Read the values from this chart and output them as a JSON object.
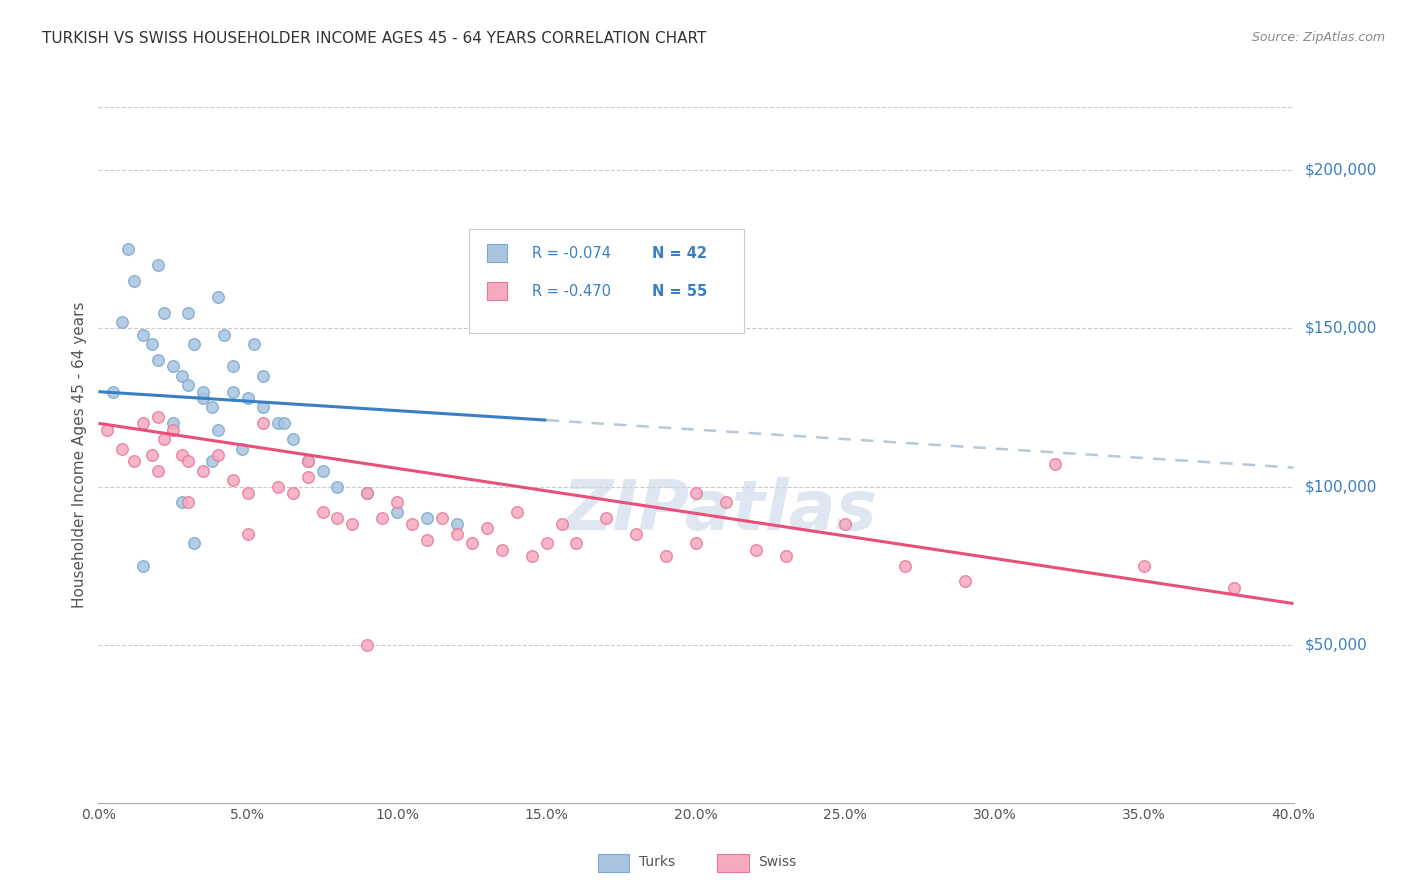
{
  "title": "TURKISH VS SWISS HOUSEHOLDER INCOME AGES 45 - 64 YEARS CORRELATION CHART",
  "source": "Source: ZipAtlas.com",
  "ylabel": "Householder Income Ages 45 - 64 years",
  "xlabel_ticks": [
    "0.0%",
    "5.0%",
    "10.0%",
    "15.0%",
    "20.0%",
    "25.0%",
    "30.0%",
    "35.0%",
    "40.0%"
  ],
  "xlabel_vals": [
    0.0,
    5.0,
    10.0,
    15.0,
    20.0,
    25.0,
    30.0,
    35.0,
    40.0
  ],
  "ylabel_ticks": [
    50000,
    100000,
    150000,
    200000
  ],
  "ylabel_labels": [
    "$50,000",
    "$100,000",
    "$150,000",
    "$200,000"
  ],
  "xlim": [
    0.0,
    40.0
  ],
  "ylim": [
    0,
    220000
  ],
  "turks_color": "#aac4e0",
  "swiss_color": "#f5aabe",
  "turks_edge": "#7aaad0",
  "swiss_edge": "#e8789a",
  "blue_line_color": "#3a7fc1",
  "pink_line_color": "#e8507a",
  "dash_line_color": "#b8c8d8",
  "watermark": "ZIPatlas",
  "watermark_color": "#c8d8e8",
  "turks_R": -0.074,
  "turks_N": 42,
  "swiss_R": -0.47,
  "swiss_N": 55,
  "dot_size": 70,
  "blue_line_x0": 0.0,
  "blue_line_y0": 130000,
  "blue_line_x1": 15.0,
  "blue_line_y1": 121000,
  "dash_line_x0": 15.0,
  "dash_line_y0": 121000,
  "dash_line_x1": 40.0,
  "dash_line_y1": 106000,
  "pink_line_x0": 0.0,
  "pink_line_y0": 120000,
  "pink_line_x1": 40.0,
  "pink_line_y1": 63000,
  "turks_x": [
    0.5,
    0.8,
    1.5,
    1.8,
    2.0,
    2.2,
    2.5,
    2.8,
    3.0,
    3.2,
    3.5,
    3.8,
    4.0,
    4.2,
    4.5,
    5.0,
    5.2,
    5.5,
    6.0,
    6.5,
    7.0,
    7.5,
    8.0,
    9.0,
    10.0,
    11.0,
    12.0,
    3.0,
    2.0,
    1.0,
    1.2,
    3.5,
    4.8,
    2.5,
    3.8,
    4.0,
    5.5,
    6.2,
    2.8,
    3.2,
    1.5,
    4.5
  ],
  "turks_y": [
    130000,
    152000,
    148000,
    145000,
    140000,
    155000,
    138000,
    135000,
    132000,
    145000,
    128000,
    125000,
    118000,
    148000,
    130000,
    128000,
    145000,
    125000,
    120000,
    115000,
    108000,
    105000,
    100000,
    98000,
    92000,
    90000,
    88000,
    155000,
    170000,
    175000,
    165000,
    130000,
    112000,
    120000,
    108000,
    160000,
    135000,
    120000,
    95000,
    82000,
    75000,
    138000
  ],
  "swiss_x": [
    0.3,
    0.8,
    1.2,
    1.5,
    1.8,
    2.0,
    2.2,
    2.5,
    2.8,
    3.0,
    3.5,
    4.0,
    4.5,
    5.0,
    5.5,
    6.0,
    6.5,
    7.0,
    7.5,
    8.0,
    8.5,
    9.0,
    9.5,
    10.0,
    10.5,
    11.0,
    11.5,
    12.0,
    12.5,
    13.0,
    13.5,
    14.0,
    14.5,
    15.0,
    15.5,
    16.0,
    17.0,
    18.0,
    19.0,
    20.0,
    21.0,
    22.0,
    23.0,
    25.0,
    27.0,
    29.0,
    32.0,
    35.0,
    38.0,
    2.0,
    3.0,
    5.0,
    7.0,
    20.0,
    9.0
  ],
  "swiss_y": [
    118000,
    112000,
    108000,
    120000,
    110000,
    122000,
    115000,
    118000,
    110000,
    108000,
    105000,
    110000,
    102000,
    98000,
    120000,
    100000,
    98000,
    108000,
    92000,
    90000,
    88000,
    98000,
    90000,
    95000,
    88000,
    83000,
    90000,
    85000,
    82000,
    87000,
    80000,
    92000,
    78000,
    82000,
    88000,
    82000,
    90000,
    85000,
    78000,
    82000,
    95000,
    80000,
    78000,
    88000,
    75000,
    70000,
    107000,
    75000,
    68000,
    105000,
    95000,
    85000,
    103000,
    98000,
    50000
  ]
}
